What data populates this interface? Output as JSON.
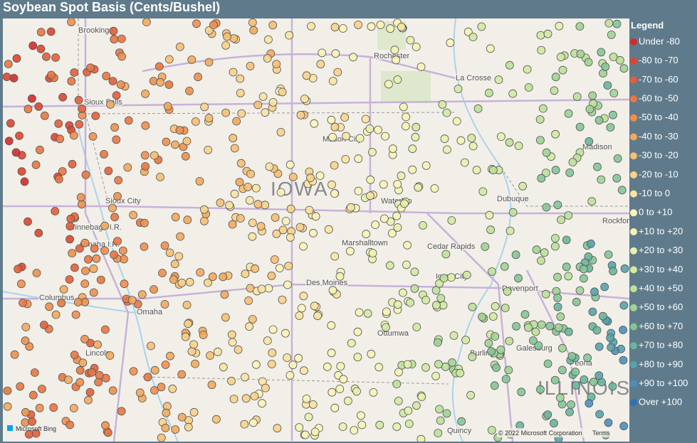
{
  "title": "Soybean Spot Basis (Cents/Bushel)",
  "legend": {
    "title": "Legend",
    "items": [
      {
        "label": "Under -80",
        "color": "#d42a2a"
      },
      {
        "label": "-80 to -70",
        "color": "#dd4530"
      },
      {
        "label": "-70 to -60",
        "color": "#e45e38"
      },
      {
        "label": "-60 to -50",
        "color": "#ea7640"
      },
      {
        "label": "-50 to -40",
        "color": "#ef8f4c"
      },
      {
        "label": "-40 to -30",
        "color": "#f3a85c"
      },
      {
        "label": "-30 to -20",
        "color": "#f6bf72"
      },
      {
        "label": "-20 to -10",
        "color": "#f8d28a"
      },
      {
        "label": "-10 to 0",
        "color": "#fbe3a2"
      },
      {
        "label": "0 to +10",
        "color": "#fcf3b8"
      },
      {
        "label": "+10 to +20",
        "color": "#f5f5b4"
      },
      {
        "label": "+20 to +30",
        "color": "#e6f1ac"
      },
      {
        "label": "+30 to +40",
        "color": "#d2e9a2"
      },
      {
        "label": "+40 to +50",
        "color": "#bce09a"
      },
      {
        "label": "+50 to +60",
        "color": "#a0d394"
      },
      {
        "label": "+60 to +70",
        "color": "#84c596"
      },
      {
        "label": "+70 to +80",
        "color": "#6ab59c"
      },
      {
        "label": "+80 to +90",
        "color": "#58a3ab"
      },
      {
        "label": "+90 to +100",
        "color": "#4a8fbc"
      },
      {
        "label": "Over +100",
        "color": "#2f72b8"
      }
    ]
  },
  "places": {
    "brookings": "Brookings",
    "rochester": "Rochester",
    "lacrosse": "La Crosse",
    "siouxfalls": "Sioux Falls",
    "masoncity": "Mason City",
    "madison": "Madison",
    "iowa": "IOWA",
    "siouxcity": "Sioux City",
    "waterloo": "Waterloo",
    "dubuque": "Dubuque",
    "winnebago": "Winnebago I.R.",
    "omahair": "Omaha I.R.",
    "marshalltown": "Marshalltown",
    "cedarrapids": "Cedar Rapids",
    "rockford": "Rockford",
    "iowacity": "Iowa City",
    "columbus": "Columbus",
    "desmoines": "Des Moines",
    "davenport": "Davenport",
    "omaha": "Omaha",
    "ottumwa": "Ottumwa",
    "galesburg": "Galesburg",
    "burlington": "Burlington",
    "lincoln": "Lincoln",
    "peoria": "Peoria",
    "illinois": "ILLINOIS",
    "quincy": "Quincy"
  },
  "attribution": {
    "bing": "Microsoft Bing",
    "copyright": "© 2022 Microsoft Corporation",
    "terms": "Terms"
  }
}
